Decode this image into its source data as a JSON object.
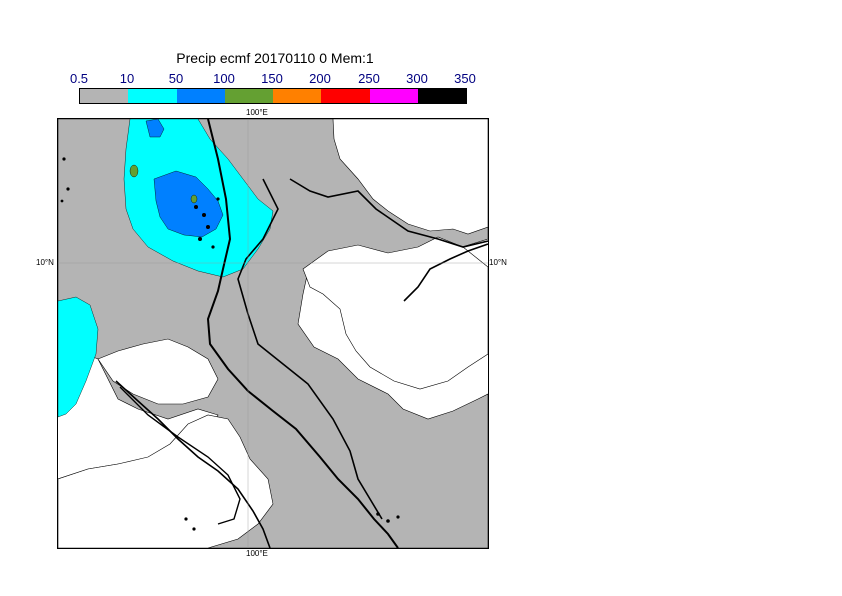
{
  "map": {
    "title": "Precip ecmf 20170110 0 Mem:1",
    "legend": {
      "ticks": [
        "0.5",
        "10",
        "50",
        "100",
        "150",
        "200",
        "250",
        "300",
        "350"
      ],
      "colors": [
        "#b4b4b4",
        "#00ffff",
        "#0080ff",
        "#64a032",
        "#ff8000",
        "#ff0000",
        "#ff00ff",
        "#000000"
      ]
    },
    "labels": {
      "lon_top": "100°E",
      "lon_bottom": "100°E",
      "lat_left": "10°N",
      "lat_right": "10°N"
    }
  }
}
